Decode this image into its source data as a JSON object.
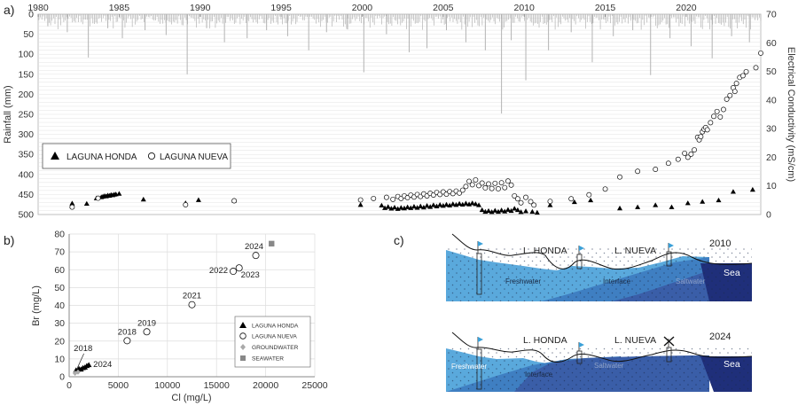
{
  "panels": {
    "a": "a)",
    "b": "b)",
    "c": "c)"
  },
  "chart_data": [
    {
      "type": "scatter",
      "panel": "a",
      "ylabel_left": "Rainfall (mm)",
      "ylabel_right": "Electrical Conductivity (mS/cm)",
      "x_ticks": [
        "1980",
        "1985",
        "1990",
        "1995",
        "2000",
        "2005",
        "2010",
        "2015",
        "2020"
      ],
      "xlim": [
        1980,
        2024.6
      ],
      "rain_ticks": [
        "0",
        "50",
        "100",
        "150",
        "200",
        "250",
        "300",
        "350",
        "400",
        "450",
        "500"
      ],
      "rain_lim": [
        0,
        500
      ],
      "ec_ticks": [
        "0",
        "10",
        "20",
        "30",
        "40",
        "50",
        "60",
        "70"
      ],
      "ec_lim": [
        0,
        70
      ],
      "rain_color": "#b3b3b3",
      "rain_peaks": [
        [
          1980.6,
          30
        ],
        [
          1981.8,
          45
        ],
        [
          1983.1,
          108
        ],
        [
          1984.3,
          35
        ],
        [
          1985.2,
          60
        ],
        [
          1986.6,
          40
        ],
        [
          1987.9,
          52
        ],
        [
          1989.2,
          150
        ],
        [
          1990.4,
          35
        ],
        [
          1991.5,
          70
        ],
        [
          1992.9,
          60
        ],
        [
          1994.1,
          40
        ],
        [
          1995.4,
          55
        ],
        [
          1996.7,
          90
        ],
        [
          1997.8,
          45
        ],
        [
          1999.1,
          38
        ],
        [
          2000.1,
          145
        ],
        [
          2001.5,
          50
        ],
        [
          2002.9,
          95
        ],
        [
          2004.0,
          85
        ],
        [
          2005.2,
          40
        ],
        [
          2006.4,
          70
        ],
        [
          2007.6,
          90
        ],
        [
          2008.6,
          248
        ],
        [
          2009.2,
          65
        ],
        [
          2010.1,
          165
        ],
        [
          2011.5,
          90
        ],
        [
          2012.9,
          45
        ],
        [
          2014.2,
          120
        ],
        [
          2015.5,
          55
        ],
        [
          2016.7,
          40
        ],
        [
          2017.8,
          152
        ],
        [
          2019.0,
          60
        ],
        [
          2020.3,
          80
        ],
        [
          2021.6,
          110
        ],
        [
          2022.8,
          55
        ],
        [
          2023.9,
          70
        ]
      ],
      "legend": {
        "position": "left",
        "series_a": "LAGUNA HONDA",
        "series_b": "LAGUNA NUEVA"
      },
      "series": [
        {
          "name": "LAGUNA HONDA",
          "marker": "triangle",
          "points": [
            [
              1982.1,
              3.8
            ],
            [
              1983.0,
              3.7
            ],
            [
              1983.6,
              5.6
            ],
            [
              1983.9,
              6.0
            ],
            [
              1984.0,
              6.2
            ],
            [
              1984.1,
              6.4
            ],
            [
              1984.2,
              6.3
            ],
            [
              1984.3,
              6.6
            ],
            [
              1984.4,
              6.5
            ],
            [
              1984.5,
              6.8
            ],
            [
              1984.6,
              6.7
            ],
            [
              1984.7,
              6.9
            ],
            [
              1984.8,
              7.0
            ],
            [
              1985.0,
              7.2
            ],
            [
              1986.5,
              5.2
            ],
            [
              1989.1,
              3.9
            ],
            [
              1989.9,
              5.0
            ],
            [
              1992.1,
              4.8
            ],
            [
              1999.9,
              3.3
            ],
            [
              2001.2,
              3.1
            ],
            [
              2001.4,
              2.2
            ],
            [
              2001.6,
              2.6
            ],
            [
              2001.8,
              2.0
            ],
            [
              2002.0,
              2.4
            ],
            [
              2002.2,
              1.9
            ],
            [
              2002.4,
              2.3
            ],
            [
              2002.6,
              2.1
            ],
            [
              2002.8,
              2.5
            ],
            [
              2003.0,
              2.2
            ],
            [
              2003.2,
              2.7
            ],
            [
              2003.4,
              2.3
            ],
            [
              2003.6,
              2.8
            ],
            [
              2003.8,
              2.4
            ],
            [
              2004.0,
              3.0
            ],
            [
              2004.2,
              2.6
            ],
            [
              2004.4,
              3.2
            ],
            [
              2004.6,
              2.8
            ],
            [
              2004.8,
              3.3
            ],
            [
              2005.0,
              3.0
            ],
            [
              2005.2,
              3.4
            ],
            [
              2005.4,
              3.1
            ],
            [
              2005.6,
              3.6
            ],
            [
              2005.8,
              3.3
            ],
            [
              2006.0,
              3.7
            ],
            [
              2006.2,
              3.4
            ],
            [
              2006.4,
              3.8
            ],
            [
              2006.6,
              3.5
            ],
            [
              2006.8,
              3.9
            ],
            [
              2007.0,
              3.6
            ],
            [
              2007.2,
              3.2
            ],
            [
              2007.4,
              1.5
            ],
            [
              2007.6,
              0.9
            ],
            [
              2007.8,
              1.2
            ],
            [
              2008.0,
              0.8
            ],
            [
              2008.2,
              1.3
            ],
            [
              2008.4,
              0.9
            ],
            [
              2008.6,
              1.4
            ],
            [
              2008.8,
              1.0
            ],
            [
              2009.0,
              1.6
            ],
            [
              2009.2,
              1.2
            ],
            [
              2009.4,
              2.0
            ],
            [
              2009.6,
              1.5
            ],
            [
              2009.8,
              0.8
            ],
            [
              2010.1,
              1.1
            ],
            [
              2010.5,
              0.9
            ],
            [
              2010.8,
              0.6
            ],
            [
              2011.6,
              3.2
            ],
            [
              2013.1,
              4.3
            ],
            [
              2014.1,
              4.9
            ],
            [
              2015.9,
              2.1
            ],
            [
              2017.0,
              2.5
            ],
            [
              2018.1,
              3.2
            ],
            [
              2019.1,
              2.5
            ],
            [
              2020.1,
              3.9
            ],
            [
              2021.0,
              4.4
            ],
            [
              2022.0,
              4.9
            ],
            [
              2022.9,
              7.9
            ],
            [
              2024.1,
              8.6
            ]
          ]
        },
        {
          "name": "LAGUNA NUEVA",
          "marker": "circle",
          "points": [
            [
              1982.1,
              2.6
            ],
            [
              1983.7,
              5.7
            ],
            [
              1989.1,
              3.4
            ],
            [
              1992.1,
              4.8
            ],
            [
              1999.9,
              5.1
            ],
            [
              2000.7,
              5.6
            ],
            [
              2001.5,
              6.0
            ],
            [
              2001.9,
              5.3
            ],
            [
              2002.2,
              6.3
            ],
            [
              2002.4,
              5.6
            ],
            [
              2002.6,
              6.5
            ],
            [
              2002.8,
              5.9
            ],
            [
              2003.0,
              6.8
            ],
            [
              2003.2,
              6.1
            ],
            [
              2003.4,
              7.0
            ],
            [
              2003.6,
              6.3
            ],
            [
              2003.8,
              7.2
            ],
            [
              2004.0,
              6.5
            ],
            [
              2004.2,
              7.4
            ],
            [
              2004.4,
              6.8
            ],
            [
              2004.6,
              7.7
            ],
            [
              2004.8,
              7.0
            ],
            [
              2005.0,
              7.9
            ],
            [
              2005.2,
              7.1
            ],
            [
              2005.4,
              8.0
            ],
            [
              2005.6,
              7.3
            ],
            [
              2005.8,
              8.2
            ],
            [
              2006.0,
              7.5
            ],
            [
              2006.2,
              8.5
            ],
            [
              2006.4,
              9.8
            ],
            [
              2006.6,
              11.6
            ],
            [
              2006.8,
              10.4
            ],
            [
              2007.0,
              12.1
            ],
            [
              2007.2,
              10.1
            ],
            [
              2007.4,
              11.0
            ],
            [
              2007.6,
              9.3
            ],
            [
              2007.8,
              10.7
            ],
            [
              2008.0,
              9.1
            ],
            [
              2008.2,
              10.9
            ],
            [
              2008.4,
              9.0
            ],
            [
              2008.6,
              11.1
            ],
            [
              2008.8,
              9.4
            ],
            [
              2009.0,
              11.7
            ],
            [
              2009.2,
              10.3
            ],
            [
              2009.4,
              6.5
            ],
            [
              2009.6,
              5.5
            ],
            [
              2009.8,
              4.1
            ],
            [
              2010.1,
              6.0
            ],
            [
              2010.4,
              4.5
            ],
            [
              2010.6,
              3.3
            ],
            [
              2011.6,
              4.6
            ],
            [
              2012.9,
              5.5
            ],
            [
              2014.0,
              6.9
            ],
            [
              2015.0,
              8.9
            ],
            [
              2015.9,
              13.1
            ],
            [
              2017.0,
              15.1
            ],
            [
              2018.1,
              15.8
            ],
            [
              2018.9,
              17.9
            ],
            [
              2019.5,
              19.3
            ],
            [
              2019.9,
              21.4
            ],
            [
              2020.1,
              20.0
            ],
            [
              2020.3,
              21.1
            ],
            [
              2020.5,
              22.6
            ],
            [
              2020.7,
              27.0
            ],
            [
              2020.8,
              26.1
            ],
            [
              2020.9,
              27.2
            ],
            [
              2021.0,
              28.9
            ],
            [
              2021.1,
              29.8
            ],
            [
              2021.2,
              30.4
            ],
            [
              2021.3,
              29.6
            ],
            [
              2021.5,
              32.1
            ],
            [
              2021.7,
              34.3
            ],
            [
              2021.9,
              36.0
            ],
            [
              2022.1,
              34.1
            ],
            [
              2022.3,
              36.7
            ],
            [
              2022.5,
              40.3
            ],
            [
              2022.7,
              41.6
            ],
            [
              2022.9,
              44.3
            ],
            [
              2023.0,
              43.0
            ],
            [
              2023.1,
              45.8
            ],
            [
              2023.3,
              47.9
            ],
            [
              2023.5,
              48.5
            ],
            [
              2023.7,
              49.9
            ],
            [
              2024.3,
              51.3
            ],
            [
              2024.6,
              56.4
            ]
          ]
        }
      ]
    },
    {
      "type": "scatter",
      "panel": "b",
      "xlabel": "Cl (mg/L)",
      "ylabel": "Br (mg/L)",
      "xlim": [
        0,
        25000
      ],
      "ylim": [
        0,
        80
      ],
      "x_ticks": [
        "0",
        "5000",
        "10000",
        "15000",
        "20000",
        "25000"
      ],
      "y_ticks": [
        "0",
        "10",
        "20",
        "30",
        "40",
        "50",
        "60",
        "70",
        "80"
      ],
      "legend": {
        "position": "bottom-right",
        "items": [
          "LAGUNA HONDA",
          "LAGUNA NUEVA",
          "GROUNDWATER",
          "SEAWATER"
        ]
      },
      "series": [
        {
          "name": "LAGUNA HONDA",
          "marker": "triangle",
          "points": [
            [
              700,
              3.5
            ],
            [
              1000,
              4.3
            ],
            [
              1200,
              4.0
            ],
            [
              1400,
              4.8
            ],
            [
              1600,
              5.1
            ],
            [
              1800,
              6.0
            ],
            [
              2000,
              6.5
            ]
          ]
        },
        {
          "name": "LAGUNA NUEVA",
          "marker": "circle",
          "points": [
            [
              5900,
              20.2
            ],
            [
              7900,
              25.2
            ],
            [
              12500,
              40.4
            ],
            [
              16700,
              59.1
            ],
            [
              17300,
              61.0
            ],
            [
              19000,
              68.0
            ]
          ]
        },
        {
          "name": "GROUNDWATER",
          "marker": "diamond",
          "points": [
            [
              600,
              2.0
            ],
            [
              900,
              2.6
            ]
          ]
        },
        {
          "name": "SEAWATER",
          "marker": "square",
          "points": [
            [
              20600,
              74.6
            ]
          ]
        }
      ],
      "annotations": [
        {
          "text": "2018",
          "x": 5900,
          "y": 20.2,
          "pos": "above"
        },
        {
          "text": "2019",
          "x": 7900,
          "y": 25.2,
          "pos": "above"
        },
        {
          "text": "2021",
          "x": 12500,
          "y": 40.4,
          "pos": "above"
        },
        {
          "text": "2022",
          "x": 16700,
          "y": 59.1,
          "pos": "left"
        },
        {
          "text": "2023",
          "x": 17300,
          "y": 61.0,
          "pos": "below-right"
        },
        {
          "text": "2024",
          "x": 19000,
          "y": 68.0,
          "pos": "above-left"
        },
        {
          "text": "2018",
          "x": 700,
          "y": 3.5,
          "pos": "label-above"
        },
        {
          "text": "2024",
          "x": 2000,
          "y": 6.5,
          "pos": "right"
        }
      ]
    }
  ],
  "diagram": {
    "top": {
      "year": "2010",
      "labels": {
        "honda": "L. HONDA",
        "nueva": "L. NUEVA",
        "sea": "Sea",
        "freshwater": "Freshwater",
        "interface": "Interface",
        "saltwater": "Saltwater"
      }
    },
    "bottom": {
      "year": "2024",
      "labels": {
        "honda": "L. HONDA",
        "nueva": "L. NUEVA",
        "sea": "Sea",
        "freshwater": "Freshwater",
        "interface": "Interface",
        "saltwater": "Saltwater"
      }
    },
    "colors": {
      "freshwater": "#5aa9dc",
      "interface": "#3f7fc2",
      "saltwater": "#3a5ea8",
      "sea": "#1f2f7a",
      "flag": "#3aa0d8"
    }
  }
}
